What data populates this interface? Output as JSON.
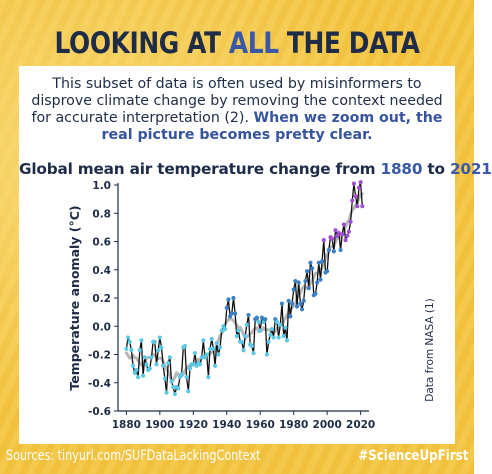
{
  "header": {
    "title_pre": "LOOKING AT ",
    "title_highlight": "ALL",
    "title_post": " THE DATA"
  },
  "intro": {
    "text": "This subset of data is often used by misinformers to disprove climate change by removing the context needed for accurate interpretation (2).",
    "emphasis": "When we zoom out, the real picture becomes pretty clear."
  },
  "footer": {
    "sources": "Sources: tinyurl.com/SUFDataLackingContext",
    "hashtag": "#ScienceUpFirst"
  },
  "colors": {
    "navy": "#1e2c47",
    "accent_blue": "#3a58a8",
    "cold_points": "#5bc8e6",
    "mid_points": "#3b7fc4",
    "warm_points": "#a14fd0",
    "trend": "#b8b8b8"
  },
  "chart_data": {
    "type": "line",
    "title_pre": "Global mean air temperature change from ",
    "title_start": "1880",
    "title_mid": " to ",
    "title_end": "2021",
    "ylabel": "Temperature anomaly (°C)",
    "side_note": "Data from NASA (1)",
    "xlim": [
      1875,
      2025
    ],
    "ylim": [
      -0.6,
      1.0
    ],
    "xticks": [
      1880,
      1900,
      1920,
      1940,
      1960,
      1980,
      2000,
      2020
    ],
    "yticks": [
      -0.6,
      -0.4,
      -0.2,
      0.0,
      0.2,
      0.4,
      0.6,
      0.8,
      1.0
    ],
    "ytick_labels": [
      "-0.6",
      "-0.4",
      "-0.2",
      "0.0",
      "0.2",
      "0.4",
      "0.6",
      "0.8",
      "1.0"
    ],
    "series": [
      {
        "x": [
          1880,
          1881,
          1882,
          1883,
          1884,
          1885,
          1886,
          1887,
          1888,
          1889,
          1890,
          1891,
          1892,
          1893,
          1894,
          1895,
          1896,
          1897,
          1898,
          1899,
          1900,
          1901,
          1902,
          1903,
          1904,
          1905,
          1906,
          1907,
          1908,
          1909,
          1910,
          1911,
          1912,
          1913,
          1914,
          1915,
          1916,
          1917,
          1918,
          1919,
          1920,
          1921,
          1922,
          1923,
          1924,
          1925,
          1926,
          1927,
          1928,
          1929,
          1930,
          1931,
          1932,
          1933,
          1934,
          1935,
          1936,
          1937,
          1938,
          1939,
          1940,
          1941,
          1942,
          1943,
          1944,
          1945,
          1946,
          1947,
          1948,
          1949,
          1950,
          1951,
          1952,
          1953,
          1954,
          1955,
          1956,
          1957,
          1958,
          1959,
          1960,
          1961,
          1962,
          1963,
          1964,
          1965,
          1966,
          1967,
          1968,
          1969,
          1970,
          1971,
          1972,
          1973,
          1974,
          1975,
          1976,
          1977,
          1978,
          1979,
          1980,
          1981,
          1982,
          1983,
          1984,
          1985,
          1986,
          1987,
          1988,
          1989,
          1990,
          1991,
          1992,
          1993,
          1994,
          1995,
          1996,
          1997,
          1998,
          1999,
          2000,
          2001,
          2002,
          2003,
          2004,
          2005,
          2006,
          2007,
          2008,
          2009,
          2010,
          2011,
          2012,
          2013,
          2014,
          2015,
          2016,
          2017,
          2018,
          2019,
          2020,
          2021
        ],
        "y": [
          -0.16,
          -0.08,
          -0.11,
          -0.17,
          -0.28,
          -0.33,
          -0.31,
          -0.36,
          -0.17,
          -0.1,
          -0.35,
          -0.22,
          -0.27,
          -0.31,
          -0.3,
          -0.22,
          -0.11,
          -0.11,
          -0.27,
          -0.17,
          -0.08,
          -0.15,
          -0.28,
          -0.37,
          -0.47,
          -0.26,
          -0.22,
          -0.39,
          -0.43,
          -0.48,
          -0.43,
          -0.44,
          -0.36,
          -0.34,
          -0.15,
          -0.14,
          -0.36,
          -0.46,
          -0.3,
          -0.27,
          -0.27,
          -0.19,
          -0.28,
          -0.26,
          -0.27,
          -0.22,
          -0.1,
          -0.22,
          -0.2,
          -0.36,
          -0.16,
          -0.09,
          -0.16,
          -0.28,
          -0.12,
          -0.2,
          -0.15,
          -0.03,
          0.0,
          -0.02,
          0.13,
          0.19,
          0.07,
          0.09,
          0.2,
          0.09,
          -0.07,
          -0.03,
          -0.11,
          -0.11,
          -0.17,
          -0.07,
          0.01,
          0.08,
          -0.13,
          -0.14,
          -0.19,
          0.05,
          0.06,
          0.03,
          -0.03,
          0.06,
          0.03,
          0.05,
          -0.2,
          -0.11,
          -0.06,
          -0.02,
          -0.08,
          0.05,
          0.03,
          -0.08,
          0.01,
          0.16,
          -0.07,
          -0.01,
          -0.1,
          0.18,
          0.07,
          0.16,
          0.26,
          0.32,
          0.14,
          0.31,
          0.16,
          0.12,
          0.18,
          0.32,
          0.39,
          0.27,
          0.45,
          0.41,
          0.22,
          0.23,
          0.31,
          0.45,
          0.33,
          0.46,
          0.61,
          0.38,
          0.39,
          0.54,
          0.63,
          0.62,
          0.53,
          0.68,
          0.64,
          0.66,
          0.54,
          0.65,
          0.72,
          0.61,
          0.64,
          0.67,
          0.74,
          0.89,
          1.01,
          0.92,
          0.85,
          0.98,
          1.02,
          0.85
        ]
      }
    ],
    "grid": false
  }
}
